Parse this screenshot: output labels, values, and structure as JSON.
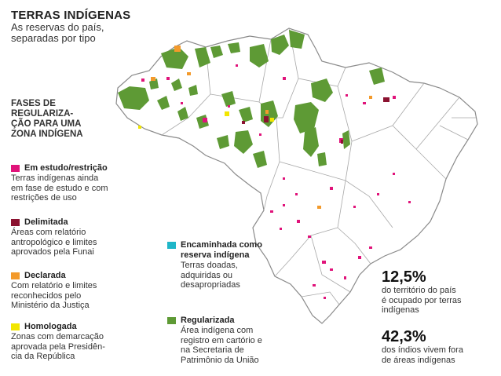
{
  "header": {
    "title": "TERRAS INDÍGENAS",
    "subtitle_line1": "As reservas do país,",
    "subtitle_line2": "separadas por tipo"
  },
  "phases_title_lines": [
    "FASES DE",
    "REGULARIZA-",
    "ÇÃO PARA UMA",
    "ZONA INDÍGENA"
  ],
  "legend": [
    {
      "label": "Em estudo/restrição",
      "color": "#e0137a",
      "desc": [
        "Terras indígenas ainda",
        "em fase de estudo e com",
        "restrições de uso"
      ]
    },
    {
      "label": "Delimitada",
      "color": "#8b1230",
      "desc": [
        "Áreas com relatório",
        "antropológico e limites",
        "aprovados pela Funai"
      ]
    },
    {
      "label": "Declarada",
      "color": "#f39a2b",
      "desc": [
        "Com relatório e limites",
        "reconhecidos pelo",
        "Ministério da Justiça"
      ]
    },
    {
      "label": "Homologada",
      "color": "#f2e600",
      "desc": [
        "Zonas com demarcação",
        "aprovada pela Presidên-",
        "cia da República"
      ]
    },
    {
      "label_lines": [
        "Encaminhada como",
        "reserva indígena"
      ],
      "color": "#1fb6c8",
      "desc": [
        "Terras doadas,",
        "adquiridas ou",
        "desapropriadas"
      ]
    },
    {
      "label": "Regularizada",
      "color": "#5e9a35",
      "desc": [
        "Área indígena com",
        "registro em cartório e",
        "na Secretaria de",
        "Patrimônio da União"
      ]
    }
  ],
  "stats": [
    {
      "value": "12,5%",
      "text": [
        "do território do país",
        "é ocupado por terras",
        "indígenas"
      ]
    },
    {
      "value": "42,3%",
      "text": [
        "dos índios vivem fora",
        "de áreas indígenas"
      ]
    }
  ],
  "map_colors": {
    "land": "#ffffff",
    "border": "#8a8a8a",
    "regularizada": "#5e9a35",
    "estudo": "#e0137a",
    "delimitada": "#8b1230",
    "declarada": "#f39a2b",
    "homologada": "#f2e600"
  }
}
